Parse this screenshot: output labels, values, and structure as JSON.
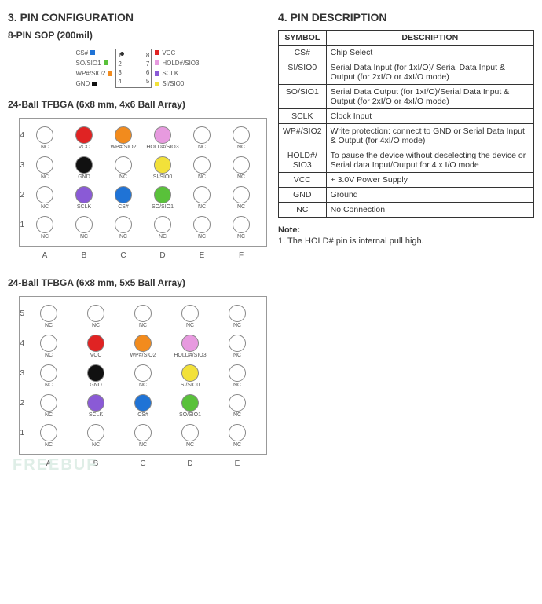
{
  "sections": {
    "pinConfigTitle": "3. PIN CONFIGURATION",
    "pinDescTitle": "4. PIN DESCRIPTION"
  },
  "sop": {
    "title": "8-PIN SOP (200mil)",
    "left": [
      {
        "n": "1",
        "label": "CS#",
        "color": "#1f73d6"
      },
      {
        "n": "2",
        "label": "SO/SIO1",
        "color": "#59c13a"
      },
      {
        "n": "3",
        "label": "WP#/SIO2",
        "color": "#f28b1d"
      },
      {
        "n": "4",
        "label": "GND",
        "color": "#111111"
      }
    ],
    "right": [
      {
        "n": "8",
        "label": "VCC",
        "color": "#e02323"
      },
      {
        "n": "7",
        "label": "HOLD#/SIO3",
        "color": "#e79adf"
      },
      {
        "n": "6",
        "label": "SCLK",
        "color": "#8a5ad6"
      },
      {
        "n": "5",
        "label": "SI/SIO0",
        "color": "#f2e13a"
      }
    ]
  },
  "bga1": {
    "title": "24-Ball TFBGA (6x8 mm, 4x6 Ball Array)",
    "rows": [
      "4",
      "3",
      "2",
      "1"
    ],
    "cols": [
      "A",
      "B",
      "C",
      "D",
      "E",
      "F"
    ],
    "cells": [
      [
        {
          "l": "NC",
          "c": "#ffffff"
        },
        {
          "l": "VCC",
          "c": "#e02323"
        },
        {
          "l": "WP#/SIO2",
          "c": "#f28b1d"
        },
        {
          "l": "HOLD#/SIO3",
          "c": "#e79adf"
        },
        {
          "l": "NC",
          "c": "#ffffff"
        },
        {
          "l": "NC",
          "c": "#ffffff"
        }
      ],
      [
        {
          "l": "NC",
          "c": "#ffffff"
        },
        {
          "l": "GND",
          "c": "#111111"
        },
        {
          "l": "NC",
          "c": "#ffffff"
        },
        {
          "l": "SI/SIO0",
          "c": "#f2e13a"
        },
        {
          "l": "NC",
          "c": "#ffffff"
        },
        {
          "l": "NC",
          "c": "#ffffff"
        }
      ],
      [
        {
          "l": "NC",
          "c": "#ffffff"
        },
        {
          "l": "SCLK",
          "c": "#8a5ad6"
        },
        {
          "l": "CS#",
          "c": "#1f73d6"
        },
        {
          "l": "SO/SIO1",
          "c": "#59c13a"
        },
        {
          "l": "NC",
          "c": "#ffffff"
        },
        {
          "l": "NC",
          "c": "#ffffff"
        }
      ],
      [
        {
          "l": "NC",
          "c": "#ffffff"
        },
        {
          "l": "NC",
          "c": "#ffffff"
        },
        {
          "l": "NC",
          "c": "#ffffff"
        },
        {
          "l": "NC",
          "c": "#ffffff"
        },
        {
          "l": "NC",
          "c": "#ffffff"
        },
        {
          "l": "NC",
          "c": "#ffffff"
        }
      ]
    ]
  },
  "bga2": {
    "title": "24-Ball TFBGA (6x8 mm, 5x5 Ball Array)",
    "rows": [
      "5",
      "4",
      "3",
      "2",
      "1"
    ],
    "cols": [
      "A",
      "B",
      "C",
      "D",
      "E"
    ],
    "cells": [
      [
        {
          "l": "NC",
          "c": "#ffffff"
        },
        {
          "l": "NC",
          "c": "#ffffff"
        },
        {
          "l": "NC",
          "c": "#ffffff"
        },
        {
          "l": "NC",
          "c": "#ffffff"
        },
        {
          "l": "NC",
          "c": "#ffffff"
        }
      ],
      [
        {
          "l": "NC",
          "c": "#ffffff"
        },
        {
          "l": "VCC",
          "c": "#e02323"
        },
        {
          "l": "WP#/SIO2",
          "c": "#f28b1d"
        },
        {
          "l": "HOLD#/SIO3",
          "c": "#e79adf"
        },
        {
          "l": "NC",
          "c": "#ffffff"
        }
      ],
      [
        {
          "l": "NC",
          "c": "#ffffff"
        },
        {
          "l": "GND",
          "c": "#111111"
        },
        {
          "l": "NC",
          "c": "#ffffff"
        },
        {
          "l": "SI/SIO0",
          "c": "#f2e13a"
        },
        {
          "l": "NC",
          "c": "#ffffff"
        }
      ],
      [
        {
          "l": "NC",
          "c": "#ffffff"
        },
        {
          "l": "SCLK",
          "c": "#8a5ad6"
        },
        {
          "l": "CS#",
          "c": "#1f73d6"
        },
        {
          "l": "SO/SIO1",
          "c": "#59c13a"
        },
        {
          "l": "NC",
          "c": "#ffffff"
        }
      ],
      [
        {
          "l": "NC",
          "c": "#ffffff"
        },
        {
          "l": "NC",
          "c": "#ffffff"
        },
        {
          "l": "NC",
          "c": "#ffffff"
        },
        {
          "l": "NC",
          "c": "#ffffff"
        },
        {
          "l": "NC",
          "c": "#ffffff"
        }
      ]
    ]
  },
  "table": {
    "headers": {
      "symbol": "SYMBOL",
      "desc": "DESCRIPTION"
    },
    "rows": [
      {
        "sym": "CS#",
        "desc": "Chip Select"
      },
      {
        "sym": "SI/SIO0",
        "desc": "Serial Data Input (for 1xI/O)/ Serial Data Input & Output (for 2xI/O or 4xI/O mode)"
      },
      {
        "sym": "SO/SIO1",
        "desc": "Serial Data Output (for 1xI/O)/Serial Data Input & Output (for 2xI/O or 4xI/O mode)"
      },
      {
        "sym": "SCLK",
        "desc": "Clock Input"
      },
      {
        "sym": "WP#/SIO2",
        "desc": "Write protection: connect to GND or Serial Data Input & Output (for 4xI/O mode)"
      },
      {
        "sym": "HOLD#/\nSIO3",
        "desc": "To pause the device without deselecting the device or Serial data Input/Output for 4 x I/O mode"
      },
      {
        "sym": "VCC",
        "desc": "+ 3.0V Power Supply"
      },
      {
        "sym": "GND",
        "desc": "Ground"
      },
      {
        "sym": "NC",
        "desc": "No Connection"
      }
    ]
  },
  "note": {
    "heading": "Note:",
    "body": "1. The HOLD# pin is internal pull high."
  },
  "watermark": "FREEBUF"
}
